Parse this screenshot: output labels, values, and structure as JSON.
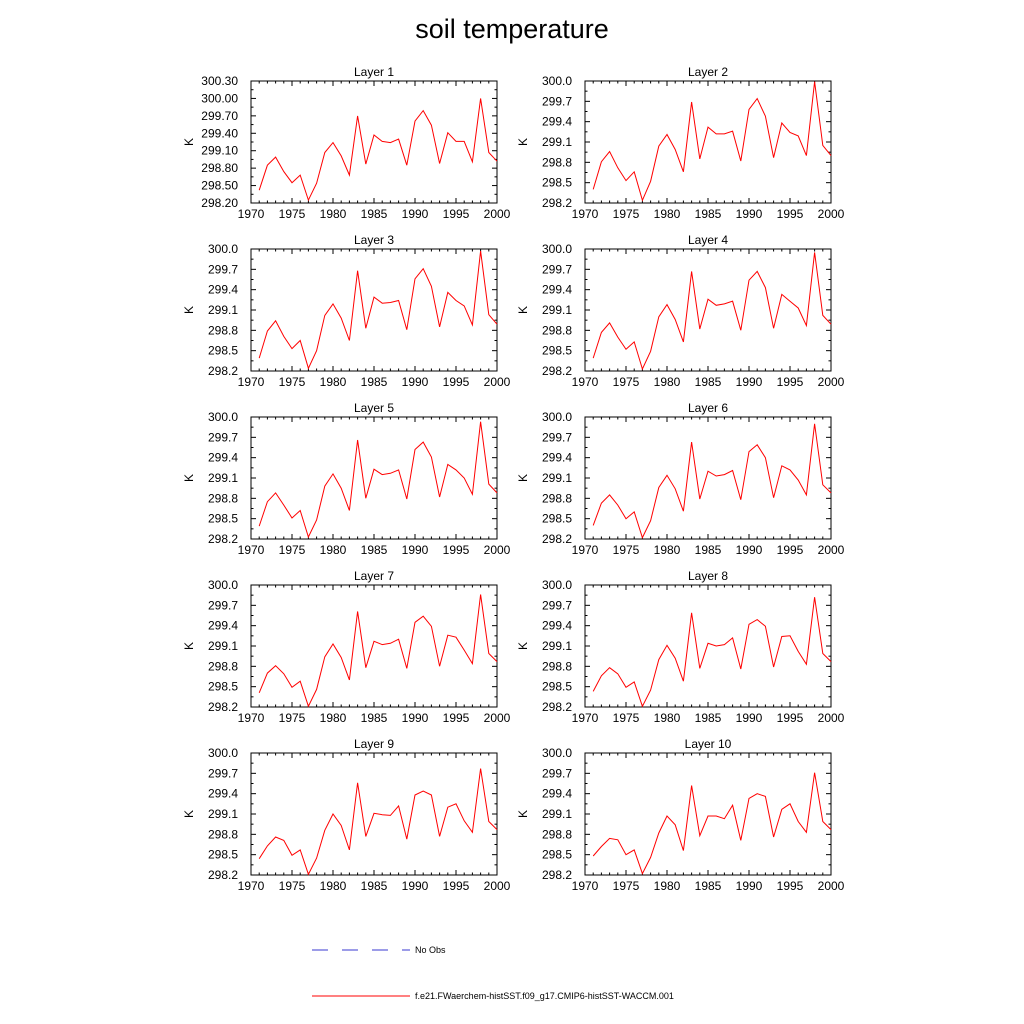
{
  "title": "soil temperature",
  "legend": {
    "obs_label": "No Obs",
    "obs_color": "#3a3ad0",
    "model_label": "f.e21.FWaerchem-histSST.f09_g17.CMIP6-histSST-WACCM.001",
    "model_color": "#ff0000"
  },
  "chart_data": [
    {
      "type": "line",
      "title": "Layer 1",
      "ylabel": "K",
      "xlim": [
        1970,
        2000
      ],
      "ylim": [
        298.2,
        300.3
      ],
      "xticks": [
        1970,
        1975,
        1980,
        1985,
        1990,
        1995,
        2000
      ],
      "yticks": [
        "298.20",
        "298.50",
        "298.80",
        "299.10",
        "299.40",
        "299.70",
        "300.00",
        "300.30"
      ],
      "x": [
        1971,
        1972,
        1973,
        1974,
        1975,
        1976,
        1977,
        1978,
        1979,
        1980,
        1981,
        1982,
        1983,
        1984,
        1985,
        1986,
        1987,
        1988,
        1989,
        1990,
        1991,
        1992,
        1993,
        1994,
        1995,
        1996,
        1997,
        1998,
        1999,
        2000
      ],
      "series": [
        {
          "values": [
            298.42,
            298.85,
            298.99,
            298.74,
            298.55,
            298.68,
            298.25,
            298.54,
            299.07,
            299.24,
            299.01,
            298.68,
            299.7,
            298.87,
            299.37,
            299.26,
            299.24,
            299.3,
            298.85,
            299.61,
            299.79,
            299.54,
            298.88,
            299.41,
            299.26,
            299.26,
            298.91,
            300.0,
            299.07,
            298.92
          ]
        }
      ]
    },
    {
      "type": "line",
      "title": "Layer 2",
      "ylabel": "K",
      "xlim": [
        1970,
        2000
      ],
      "ylim": [
        298.2,
        300.0
      ],
      "xticks": [
        1970,
        1975,
        1980,
        1985,
        1990,
        1995,
        2000
      ],
      "yticks": [
        "298.2",
        "298.5",
        "298.8",
        "299.1",
        "299.4",
        "299.7",
        "300.0"
      ],
      "x": [
        1971,
        1972,
        1973,
        1974,
        1975,
        1976,
        1977,
        1978,
        1979,
        1980,
        1981,
        1982,
        1983,
        1984,
        1985,
        1986,
        1987,
        1988,
        1989,
        1990,
        1991,
        1992,
        1993,
        1994,
        1995,
        1996,
        1997,
        1998,
        1999,
        2000
      ],
      "series": [
        {
          "values": [
            298.4,
            298.81,
            298.96,
            298.72,
            298.53,
            298.66,
            298.24,
            298.52,
            299.04,
            299.21,
            298.99,
            298.66,
            299.69,
            298.85,
            299.32,
            299.22,
            299.22,
            299.26,
            298.82,
            299.58,
            299.74,
            299.48,
            298.87,
            299.38,
            299.24,
            299.19,
            298.9,
            299.99,
            299.05,
            298.9
          ]
        }
      ]
    },
    {
      "type": "line",
      "title": "Layer 3",
      "ylabel": "K",
      "xlim": [
        1970,
        2000
      ],
      "ylim": [
        298.2,
        300.0
      ],
      "xticks": [
        1970,
        1975,
        1980,
        1985,
        1990,
        1995,
        2000
      ],
      "yticks": [
        "298.2",
        "298.5",
        "298.8",
        "299.1",
        "299.4",
        "299.7",
        "300.0"
      ],
      "x": [
        1971,
        1972,
        1973,
        1974,
        1975,
        1976,
        1977,
        1978,
        1979,
        1980,
        1981,
        1982,
        1983,
        1984,
        1985,
        1986,
        1987,
        1988,
        1989,
        1990,
        1991,
        1992,
        1993,
        1994,
        1995,
        1996,
        1997,
        1998,
        1999,
        2000
      ],
      "series": [
        {
          "values": [
            298.39,
            298.79,
            298.94,
            298.71,
            298.53,
            298.65,
            298.24,
            298.5,
            299.02,
            299.19,
            298.98,
            298.65,
            299.68,
            298.83,
            299.29,
            299.2,
            299.21,
            299.24,
            298.81,
            299.56,
            299.71,
            299.45,
            298.85,
            299.36,
            299.24,
            299.16,
            298.88,
            299.97,
            299.03,
            298.89
          ]
        }
      ]
    },
    {
      "type": "line",
      "title": "Layer 4",
      "ylabel": "K",
      "xlim": [
        1970,
        2000
      ],
      "ylim": [
        298.2,
        300.0
      ],
      "xticks": [
        1970,
        1975,
        1980,
        1985,
        1990,
        1995,
        2000
      ],
      "yticks": [
        "298.2",
        "298.5",
        "298.8",
        "299.1",
        "299.4",
        "299.7",
        "300.0"
      ],
      "x": [
        1971,
        1972,
        1973,
        1974,
        1975,
        1976,
        1977,
        1978,
        1979,
        1980,
        1981,
        1982,
        1983,
        1984,
        1985,
        1986,
        1987,
        1988,
        1989,
        1990,
        1991,
        1992,
        1993,
        1994,
        1995,
        1996,
        1997,
        1998,
        1999,
        2000
      ],
      "series": [
        {
          "values": [
            298.39,
            298.77,
            298.91,
            298.7,
            298.52,
            298.63,
            298.23,
            298.49,
            299.0,
            299.18,
            298.96,
            298.63,
            299.67,
            298.82,
            299.26,
            299.17,
            299.19,
            299.23,
            298.8,
            299.54,
            299.67,
            299.43,
            298.83,
            299.33,
            299.23,
            299.13,
            298.87,
            299.95,
            299.02,
            298.89
          ]
        }
      ]
    },
    {
      "type": "line",
      "title": "Layer 5",
      "ylabel": "K",
      "xlim": [
        1970,
        2000
      ],
      "ylim": [
        298.2,
        300.0
      ],
      "xticks": [
        1970,
        1975,
        1980,
        1985,
        1990,
        1995,
        2000
      ],
      "yticks": [
        "298.2",
        "298.5",
        "298.8",
        "299.1",
        "299.4",
        "299.7",
        "300.0"
      ],
      "x": [
        1971,
        1972,
        1973,
        1974,
        1975,
        1976,
        1977,
        1978,
        1979,
        1980,
        1981,
        1982,
        1983,
        1984,
        1985,
        1986,
        1987,
        1988,
        1989,
        1990,
        1991,
        1992,
        1993,
        1994,
        1995,
        1996,
        1997,
        1998,
        1999,
        2000
      ],
      "series": [
        {
          "values": [
            298.39,
            298.75,
            298.88,
            298.7,
            298.51,
            298.62,
            298.23,
            298.48,
            298.98,
            299.16,
            298.95,
            298.62,
            299.66,
            298.8,
            299.23,
            299.15,
            299.17,
            299.22,
            298.79,
            299.52,
            299.63,
            299.41,
            298.82,
            299.3,
            299.22,
            299.1,
            298.86,
            299.93,
            299.01,
            298.88
          ]
        }
      ]
    },
    {
      "type": "line",
      "title": "Layer 6",
      "ylabel": "K",
      "xlim": [
        1970,
        2000
      ],
      "ylim": [
        298.2,
        300.0
      ],
      "xticks": [
        1970,
        1975,
        1980,
        1985,
        1990,
        1995,
        2000
      ],
      "yticks": [
        "298.2",
        "298.5",
        "298.8",
        "299.1",
        "299.4",
        "299.7",
        "300.0"
      ],
      "x": [
        1971,
        1972,
        1973,
        1974,
        1975,
        1976,
        1977,
        1978,
        1979,
        1980,
        1981,
        1982,
        1983,
        1984,
        1985,
        1986,
        1987,
        1988,
        1989,
        1990,
        1991,
        1992,
        1993,
        1994,
        1995,
        1996,
        1997,
        1998,
        1999,
        2000
      ],
      "series": [
        {
          "values": [
            298.4,
            298.73,
            298.85,
            298.7,
            298.5,
            298.6,
            298.22,
            298.47,
            298.96,
            299.14,
            298.94,
            298.61,
            299.63,
            298.79,
            299.2,
            299.13,
            299.15,
            299.21,
            298.78,
            299.49,
            299.59,
            299.4,
            298.81,
            299.28,
            299.22,
            299.07,
            298.85,
            299.9,
            299.0,
            298.88
          ]
        }
      ]
    },
    {
      "type": "line",
      "title": "Layer 7",
      "ylabel": "K",
      "xlim": [
        1970,
        2000
      ],
      "ylim": [
        298.2,
        300.0
      ],
      "xticks": [
        1970,
        1975,
        1980,
        1985,
        1990,
        1995,
        2000
      ],
      "yticks": [
        "298.2",
        "298.5",
        "298.8",
        "299.1",
        "299.4",
        "299.7",
        "300.0"
      ],
      "x": [
        1971,
        1972,
        1973,
        1974,
        1975,
        1976,
        1977,
        1978,
        1979,
        1980,
        1981,
        1982,
        1983,
        1984,
        1985,
        1986,
        1987,
        1988,
        1989,
        1990,
        1991,
        1992,
        1993,
        1994,
        1995,
        1996,
        1997,
        1998,
        1999,
        2000
      ],
      "series": [
        {
          "values": [
            298.41,
            298.7,
            298.81,
            298.69,
            298.49,
            298.58,
            298.21,
            298.46,
            298.94,
            299.13,
            298.93,
            298.6,
            299.61,
            298.78,
            299.17,
            299.12,
            299.14,
            299.2,
            298.77,
            299.45,
            299.54,
            299.39,
            298.8,
            299.26,
            299.23,
            299.04,
            298.84,
            299.86,
            298.99,
            298.87
          ]
        }
      ]
    },
    {
      "type": "line",
      "title": "Layer 8",
      "ylabel": "K",
      "xlim": [
        1970,
        2000
      ],
      "ylim": [
        298.2,
        300.0
      ],
      "xticks": [
        1970,
        1975,
        1980,
        1985,
        1990,
        1995,
        2000
      ],
      "yticks": [
        "298.2",
        "298.5",
        "298.8",
        "299.1",
        "299.4",
        "299.7",
        "300.0"
      ],
      "x": [
        1971,
        1972,
        1973,
        1974,
        1975,
        1976,
        1977,
        1978,
        1979,
        1980,
        1981,
        1982,
        1983,
        1984,
        1985,
        1986,
        1987,
        1988,
        1989,
        1990,
        1991,
        1992,
        1993,
        1994,
        1995,
        1996,
        1997,
        1998,
        1999,
        2000
      ],
      "series": [
        {
          "values": [
            298.43,
            298.66,
            298.78,
            298.69,
            298.49,
            298.57,
            298.21,
            298.45,
            298.9,
            299.11,
            298.92,
            298.58,
            299.59,
            298.77,
            299.14,
            299.1,
            299.12,
            299.22,
            298.76,
            299.42,
            299.49,
            299.39,
            298.79,
            299.24,
            299.25,
            299.02,
            298.83,
            299.82,
            298.99,
            298.87
          ]
        }
      ]
    },
    {
      "type": "line",
      "title": "Layer 9",
      "ylabel": "K",
      "xlim": [
        1970,
        2000
      ],
      "ylim": [
        298.2,
        300.0
      ],
      "xticks": [
        1970,
        1975,
        1980,
        1985,
        1990,
        1995,
        2000
      ],
      "yticks": [
        "298.2",
        "298.5",
        "298.8",
        "299.1",
        "299.4",
        "299.7",
        "300.0"
      ],
      "x": [
        1971,
        1972,
        1973,
        1974,
        1975,
        1976,
        1977,
        1978,
        1979,
        1980,
        1981,
        1982,
        1983,
        1984,
        1985,
        1986,
        1987,
        1988,
        1989,
        1990,
        1991,
        1992,
        1993,
        1994,
        1995,
        1996,
        1997,
        1998,
        1999,
        2000
      ],
      "series": [
        {
          "values": [
            298.44,
            298.63,
            298.76,
            298.71,
            298.49,
            298.57,
            298.21,
            298.45,
            298.86,
            299.1,
            298.93,
            298.57,
            299.56,
            298.77,
            299.11,
            299.09,
            299.08,
            299.22,
            298.73,
            299.38,
            299.44,
            299.38,
            298.77,
            299.2,
            299.25,
            299.0,
            298.83,
            299.77,
            298.99,
            298.87
          ]
        }
      ]
    },
    {
      "type": "line",
      "title": "Layer 10",
      "ylabel": "K",
      "xlim": [
        1970,
        2000
      ],
      "ylim": [
        298.2,
        300.0
      ],
      "xticks": [
        1970,
        1975,
        1980,
        1985,
        1990,
        1995,
        2000
      ],
      "yticks": [
        "298.2",
        "298.5",
        "298.8",
        "299.1",
        "299.4",
        "299.7",
        "300.0"
      ],
      "x": [
        1971,
        1972,
        1973,
        1974,
        1975,
        1976,
        1977,
        1978,
        1979,
        1980,
        1981,
        1982,
        1983,
        1984,
        1985,
        1986,
        1987,
        1988,
        1989,
        1990,
        1991,
        1992,
        1993,
        1994,
        1995,
        1996,
        1997,
        1998,
        1999,
        2000
      ],
      "series": [
        {
          "values": [
            298.48,
            298.62,
            298.74,
            298.72,
            298.5,
            298.57,
            298.22,
            298.46,
            298.82,
            299.07,
            298.94,
            298.56,
            299.52,
            298.78,
            299.07,
            299.07,
            299.03,
            299.23,
            298.71,
            299.33,
            299.4,
            299.36,
            298.76,
            299.17,
            299.25,
            298.99,
            298.83,
            299.71,
            298.99,
            298.87
          ]
        }
      ]
    }
  ]
}
